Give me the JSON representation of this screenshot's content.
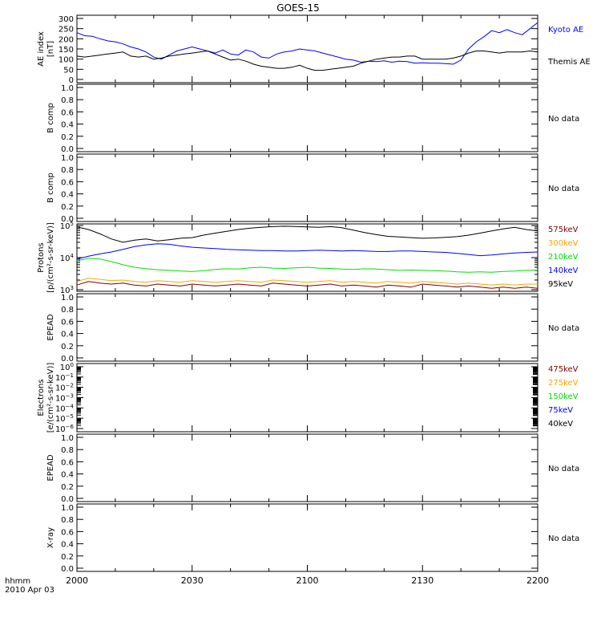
{
  "title": "GOES-15",
  "x_axis": {
    "ticks": [
      "2000",
      "2030",
      "2100",
      "2130",
      "2200"
    ],
    "label_line1": "hhmm",
    "label_line2": "2010 Apr 03"
  },
  "nodata_label": "No data",
  "colors": {
    "kyoto": "#0000ff",
    "themis": "#000000",
    "p575": "#800000",
    "p300": "#ffa500",
    "p210": "#00e000",
    "p140": "#0000ff",
    "p95": "#000000",
    "e475": "#800000",
    "e275": "#ffa500",
    "e150": "#00e000",
    "e75": "#0000ff",
    "e40": "#000000"
  },
  "chart_data": [
    {
      "type": "line",
      "panel": "ae",
      "ylabel": [
        "AE index",
        "[nT]"
      ],
      "ylim": [
        0,
        300
      ],
      "yticks": [
        "0",
        "50",
        "100",
        "150",
        "200",
        "250",
        "300"
      ],
      "x_minutes_range": [
        0,
        120
      ],
      "legend_placement": "right",
      "series": [
        {
          "name": "Kyoto AE",
          "color_key": "kyoto",
          "x": [
            0,
            2,
            4,
            6,
            8,
            10,
            12,
            14,
            16,
            18,
            20,
            22,
            24,
            26,
            28,
            30,
            32,
            34,
            36,
            38,
            40,
            42,
            44,
            46,
            48,
            50,
            52,
            54,
            56,
            58,
            60,
            62,
            64,
            66,
            68,
            70,
            72,
            74,
            76,
            78,
            80,
            82,
            84,
            86,
            88,
            90,
            92,
            94,
            96,
            98,
            100,
            102,
            104,
            106,
            108,
            110,
            112,
            114,
            116,
            118,
            120
          ],
          "values": [
            230,
            215,
            212,
            200,
            190,
            185,
            175,
            160,
            150,
            135,
            110,
            100,
            120,
            140,
            150,
            160,
            150,
            140,
            130,
            145,
            125,
            120,
            145,
            135,
            110,
            105,
            125,
            135,
            140,
            150,
            145,
            140,
            130,
            120,
            110,
            100,
            95,
            85,
            90,
            88,
            92,
            85,
            90,
            88,
            80,
            82,
            80,
            80,
            78,
            75,
            95,
            150,
            185,
            210,
            240,
            230,
            245,
            230,
            220,
            250,
            280
          ]
        },
        {
          "name": "Themis AE",
          "color_key": "themis",
          "x": [
            0,
            2,
            4,
            6,
            8,
            10,
            12,
            14,
            16,
            18,
            20,
            22,
            24,
            26,
            28,
            30,
            32,
            34,
            36,
            38,
            40,
            42,
            44,
            46,
            48,
            50,
            52,
            54,
            56,
            58,
            60,
            62,
            64,
            66,
            68,
            70,
            72,
            74,
            76,
            78,
            80,
            82,
            84,
            86,
            88,
            90,
            92,
            94,
            96,
            98,
            100,
            102,
            104,
            106,
            108,
            110,
            112,
            114,
            116,
            118,
            120
          ],
          "values": [
            115,
            110,
            115,
            120,
            125,
            130,
            135,
            115,
            110,
            115,
            100,
            105,
            115,
            120,
            125,
            130,
            135,
            140,
            125,
            110,
            95,
            100,
            90,
            75,
            65,
            60,
            55,
            55,
            60,
            70,
            55,
            45,
            45,
            50,
            55,
            60,
            65,
            80,
            90,
            100,
            105,
            110,
            110,
            115,
            115,
            100,
            100,
            100,
            100,
            105,
            115,
            130,
            140,
            140,
            135,
            130,
            135,
            135,
            135,
            140,
            135
          ]
        }
      ]
    },
    {
      "type": "line",
      "panel": "b1",
      "ylabel": [
        "B comp"
      ],
      "ylim": [
        0,
        1
      ],
      "yticks": [
        "0.0",
        "0.2",
        "0.4",
        "0.6",
        "0.8",
        "1.0"
      ],
      "series": []
    },
    {
      "type": "line",
      "panel": "b2",
      "ylabel": [
        "B comp"
      ],
      "ylim": [
        0,
        1
      ],
      "yticks": [
        "0.0",
        "0.2",
        "0.4",
        "0.6",
        "0.8",
        "1.0"
      ],
      "series": []
    },
    {
      "type": "line",
      "panel": "protons",
      "ylabel": [
        "Protons",
        "[p/(cm²-s-sr-keV)]"
      ],
      "log_scale": true,
      "ylim": [
        1000,
        100000
      ],
      "yticks": [
        {
          "base": "10",
          "exp": "3",
          "value": 1000
        },
        {
          "base": "10",
          "exp": "4",
          "value": 10000
        },
        {
          "base": "10",
          "exp": "5",
          "value": 100000
        }
      ],
      "x_minutes_range": [
        0,
        120
      ],
      "legend_placement": "right",
      "series": [
        {
          "name": "575keV",
          "color_key": "p575",
          "x": [
            0,
            3,
            6,
            9,
            12,
            15,
            18,
            21,
            24,
            27,
            30,
            33,
            36,
            39,
            42,
            45,
            48,
            51,
            54,
            57,
            60,
            63,
            66,
            69,
            72,
            75,
            78,
            81,
            84,
            87,
            90,
            93,
            96,
            99,
            102,
            105,
            108,
            111,
            114,
            117,
            120
          ],
          "values": [
            1400,
            1800,
            1600,
            1500,
            1600,
            1400,
            1300,
            1500,
            1400,
            1300,
            1500,
            1400,
            1300,
            1400,
            1500,
            1400,
            1300,
            1600,
            1500,
            1400,
            1300,
            1400,
            1500,
            1300,
            1400,
            1300,
            1200,
            1400,
            1300,
            1200,
            1500,
            1400,
            1300,
            1200,
            1300,
            1200,
            1100,
            1200,
            1100,
            1200,
            1100
          ]
        },
        {
          "name": "300keV",
          "color_key": "p300",
          "x": [
            0,
            3,
            6,
            9,
            12,
            15,
            18,
            21,
            24,
            27,
            30,
            33,
            36,
            39,
            42,
            45,
            48,
            51,
            54,
            57,
            60,
            63,
            66,
            69,
            72,
            75,
            78,
            81,
            84,
            87,
            90,
            93,
            96,
            99,
            102,
            105,
            108,
            111,
            114,
            117,
            120
          ],
          "values": [
            1800,
            2300,
            2100,
            1900,
            2000,
            1800,
            1700,
            1900,
            1800,
            1700,
            1900,
            1800,
            1700,
            1800,
            1900,
            1800,
            1700,
            2000,
            1900,
            1800,
            1700,
            1800,
            1900,
            1700,
            1800,
            1700,
            1600,
            1800,
            1700,
            1600,
            1800,
            1700,
            1600,
            1500,
            1600,
            1500,
            1400,
            1500,
            1400,
            1500,
            1500
          ]
        },
        {
          "name": "210keV",
          "color_key": "p210",
          "x": [
            0,
            3,
            6,
            9,
            12,
            15,
            18,
            21,
            24,
            27,
            30,
            33,
            36,
            39,
            42,
            45,
            48,
            51,
            54,
            57,
            60,
            63,
            66,
            69,
            72,
            75,
            78,
            81,
            84,
            87,
            90,
            93,
            96,
            99,
            102,
            105,
            108,
            111,
            114,
            117,
            120
          ],
          "values": [
            8000,
            9500,
            9000,
            7500,
            6000,
            5000,
            4500,
            4200,
            4000,
            3800,
            3700,
            3900,
            4300,
            4500,
            4400,
            4800,
            5000,
            4700,
            4600,
            4800,
            5000,
            4700,
            4600,
            4400,
            4300,
            4500,
            4400,
            4200,
            4000,
            4100,
            4000,
            3900,
            3800,
            3600,
            3500,
            3600,
            3500,
            3700,
            3800,
            4000,
            4100
          ]
        },
        {
          "name": "140keV",
          "color_key": "p140",
          "x": [
            0,
            3,
            6,
            9,
            12,
            15,
            18,
            21,
            24,
            27,
            30,
            33,
            36,
            39,
            42,
            45,
            48,
            51,
            54,
            57,
            60,
            63,
            66,
            69,
            72,
            75,
            78,
            81,
            84,
            87,
            90,
            93,
            96,
            99,
            102,
            105,
            108,
            111,
            114,
            117,
            120
          ],
          "values": [
            9000,
            11000,
            13000,
            15000,
            18000,
            22000,
            25000,
            27000,
            26000,
            23000,
            21000,
            20000,
            19000,
            18000,
            17500,
            17000,
            16500,
            16500,
            16000,
            16000,
            16500,
            17000,
            16500,
            16000,
            16500,
            16000,
            15500,
            15500,
            16000,
            16000,
            15500,
            15000,
            14500,
            13500,
            12500,
            11500,
            12000,
            13000,
            14000,
            14500,
            15000
          ]
        },
        {
          "name": "95keV",
          "color_key": "p95",
          "x": [
            0,
            3,
            6,
            9,
            12,
            15,
            18,
            21,
            24,
            27,
            30,
            33,
            36,
            39,
            42,
            45,
            48,
            51,
            54,
            57,
            60,
            63,
            66,
            69,
            72,
            75,
            78,
            81,
            84,
            87,
            90,
            93,
            96,
            99,
            102,
            105,
            108,
            111,
            114,
            117,
            120
          ],
          "values": [
            90000,
            75000,
            55000,
            38000,
            30000,
            35000,
            38000,
            33000,
            36000,
            40000,
            42000,
            50000,
            58000,
            66000,
            75000,
            82000,
            88000,
            92000,
            95000,
            93000,
            90000,
            88000,
            92000,
            85000,
            72000,
            60000,
            52000,
            46000,
            44000,
            42000,
            40000,
            41000,
            43000,
            45000,
            50000,
            58000,
            68000,
            78000,
            88000,
            75000,
            68000
          ]
        }
      ]
    },
    {
      "type": "line",
      "panel": "epead1",
      "ylabel": [
        "EPEAD"
      ],
      "ylim": [
        0,
        1
      ],
      "yticks": [
        "0.0",
        "0.2",
        "0.4",
        "0.6",
        "0.8",
        "1.0"
      ],
      "series": []
    },
    {
      "type": "line",
      "panel": "electrons",
      "ylabel": [
        "Electrons",
        "[e/(cm²-s-sr-keV)]"
      ],
      "log_scale": true,
      "ylim": [
        1e-06,
        1
      ],
      "yticks": [
        {
          "base": "10",
          "exp": "0",
          "value": 1
        },
        {
          "base": "10",
          "exp": "−1",
          "value": 0.1
        },
        {
          "base": "10",
          "exp": "−2",
          "value": 0.01
        },
        {
          "base": "10",
          "exp": "−3",
          "value": 0.001
        },
        {
          "base": "10",
          "exp": "−4",
          "value": 0.0001
        },
        {
          "base": "10",
          "exp": "−5",
          "value": 1e-05
        },
        {
          "base": "10",
          "exp": "−6",
          "value": 1e-06
        }
      ],
      "legend_placement": "right",
      "series": [
        {
          "name": "475keV",
          "color_key": "e475",
          "values": []
        },
        {
          "name": "275keV",
          "color_key": "e275",
          "values": []
        },
        {
          "name": "150keV",
          "color_key": "e150",
          "values": []
        },
        {
          "name": "75keV",
          "color_key": "e75",
          "values": []
        },
        {
          "name": "40keV",
          "color_key": "e40",
          "values": []
        }
      ]
    },
    {
      "type": "line",
      "panel": "epead2",
      "ylabel": [
        "EPEAD"
      ],
      "ylim": [
        0,
        1
      ],
      "yticks": [
        "0.0",
        "0.2",
        "0.4",
        "0.6",
        "0.8",
        "1.0"
      ],
      "series": []
    },
    {
      "type": "line",
      "panel": "xray",
      "ylabel": [
        "X-ray"
      ],
      "ylim": [
        0,
        1
      ],
      "yticks": [
        "0.0",
        "0.2",
        "0.4",
        "0.6",
        "0.8",
        "1.0"
      ],
      "series": []
    }
  ]
}
